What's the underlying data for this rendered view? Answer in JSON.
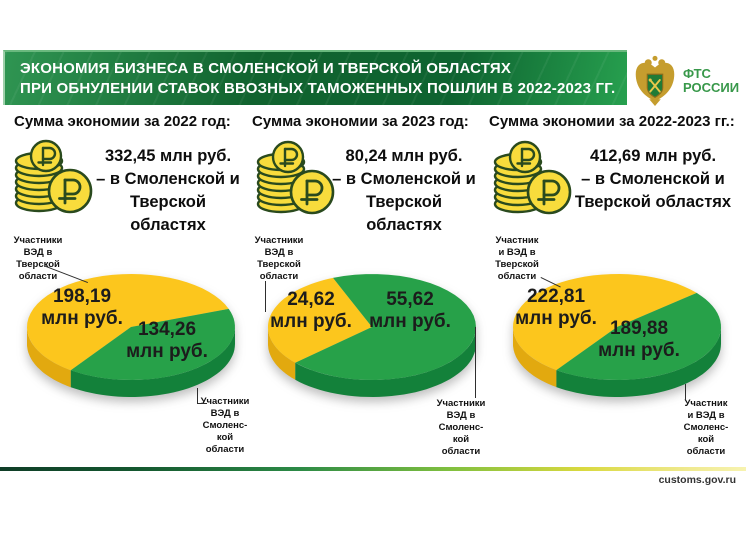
{
  "banner": {
    "line1": "ЭКОНОМИЯ  БИЗНЕСА В СМОЛЕНСКОЙ  И ТВЕРСКОЙ  ОБЛАСТЯХ",
    "line2": "ПРИ ОБНУЛЕНИИ  СТАВОК  ВВОЗНЫХ  ТАМОЖЕННЫХ  ПОШЛИН  В 2022-2023 ГГ."
  },
  "logo": {
    "line1": "ФТС",
    "line2": "РОССИИ"
  },
  "footer": {
    "site": "customs.gov.ru"
  },
  "columns": [
    {
      "header": "Сумма экономии за 2022 год:",
      "amount": [
        "332,45 млн руб.",
        "– в Смоленской и",
        "Тверской областях"
      ],
      "pie_values": {
        "yellow": [
          "198,19",
          "млн руб."
        ],
        "green": [
          "134,26",
          "млн руб."
        ]
      },
      "label_top": [
        "Участники",
        "ВЭД в",
        "Тверской",
        "области"
      ],
      "label_bottom": [
        "Участники",
        "ВЭД в",
        "Смоленс-",
        "кой",
        "области"
      ]
    },
    {
      "header": "Сумма экономии за 2023 год:",
      "amount": [
        "80,24 млн руб.",
        "– в Смоленской и",
        "Тверской областях"
      ],
      "pie_values": {
        "yellow": [
          "24,62",
          "млн руб."
        ],
        "green": [
          "55,62",
          "млн руб."
        ]
      },
      "label_top": [
        "Участники",
        "ВЭД в",
        "Тверской",
        "области"
      ],
      "label_bottom": [
        "Участники",
        "ВЭД в",
        "Смоленс-",
        "кой",
        "области"
      ]
    },
    {
      "header": "Сумма экономии за 2022-2023 гг.:",
      "amount": [
        "412,69 млн руб.",
        "– в Смоленской и",
        "Тверской областях"
      ],
      "pie_values": {
        "yellow": [
          "222,81",
          "млн руб."
        ],
        "green": [
          "189,88",
          "млн руб."
        ]
      },
      "label_top": [
        "Участник",
        "и ВЭД в",
        "Тверской",
        "области"
      ],
      "label_bottom": [
        "Участник",
        "и ВЭД в",
        "Смоленс-",
        "кой",
        "области"
      ]
    }
  ],
  "chart_data": [
    {
      "type": "pie",
      "title": "Сумма экономии за 2022 год:",
      "total_label": "332,45 млн руб.",
      "slices": [
        {
          "label": "Участники ВЭД в Тверской области",
          "value": 198.19,
          "unit": "млн руб.",
          "color": "#FCC61D"
        },
        {
          "label": "Участники ВЭД в Смоленской области",
          "value": 134.26,
          "unit": "млн руб.",
          "color": "#27A149"
        }
      ],
      "layout": {
        "style": "3d",
        "legend": "none",
        "labels": "callout",
        "green_start_deg": 20
      }
    },
    {
      "type": "pie",
      "title": "Сумма экономии за 2023 год:",
      "total_label": "80,24 млн руб.",
      "slices": [
        {
          "label": "Участники ВЭД в Тверской области",
          "value": 24.62,
          "unit": "млн руб.",
          "color": "#FCC61D"
        },
        {
          "label": "Участники ВЭД в Смоленской области",
          "value": 55.62,
          "unit": "млн руб.",
          "color": "#27A149"
        }
      ],
      "layout": {
        "style": "3d",
        "legend": "none",
        "labels": "callout",
        "green_start_deg": 112
      }
    },
    {
      "type": "pie",
      "title": "Сумма экономии за 2022-2023 гг.:",
      "total_label": "412,69 млн руб.",
      "slices": [
        {
          "label": "Участники ВЭД в Тверской области",
          "value": 222.81,
          "unit": "млн руб.",
          "color": "#FCC61D"
        },
        {
          "label": "Участники ВЭД в Смоленской области",
          "value": 189.88,
          "unit": "млн руб.",
          "color": "#27A149"
        }
      ],
      "layout": {
        "style": "3d",
        "legend": "none",
        "labels": "callout",
        "green_start_deg": 40
      }
    }
  ],
  "colors": {
    "banner_green": "#0F6A33",
    "pie_yellow": "#FCC61D",
    "pie_yellow_side": "#E2A90F",
    "pie_green": "#27A149",
    "pie_green_side": "#13813A",
    "coin_fill": "#F8DC3C",
    "coin_outline": "#2A4A1E",
    "logo_green": "#38984A",
    "footer_dark": "#0F3D27",
    "footer_yellow": "#EFE98E"
  }
}
